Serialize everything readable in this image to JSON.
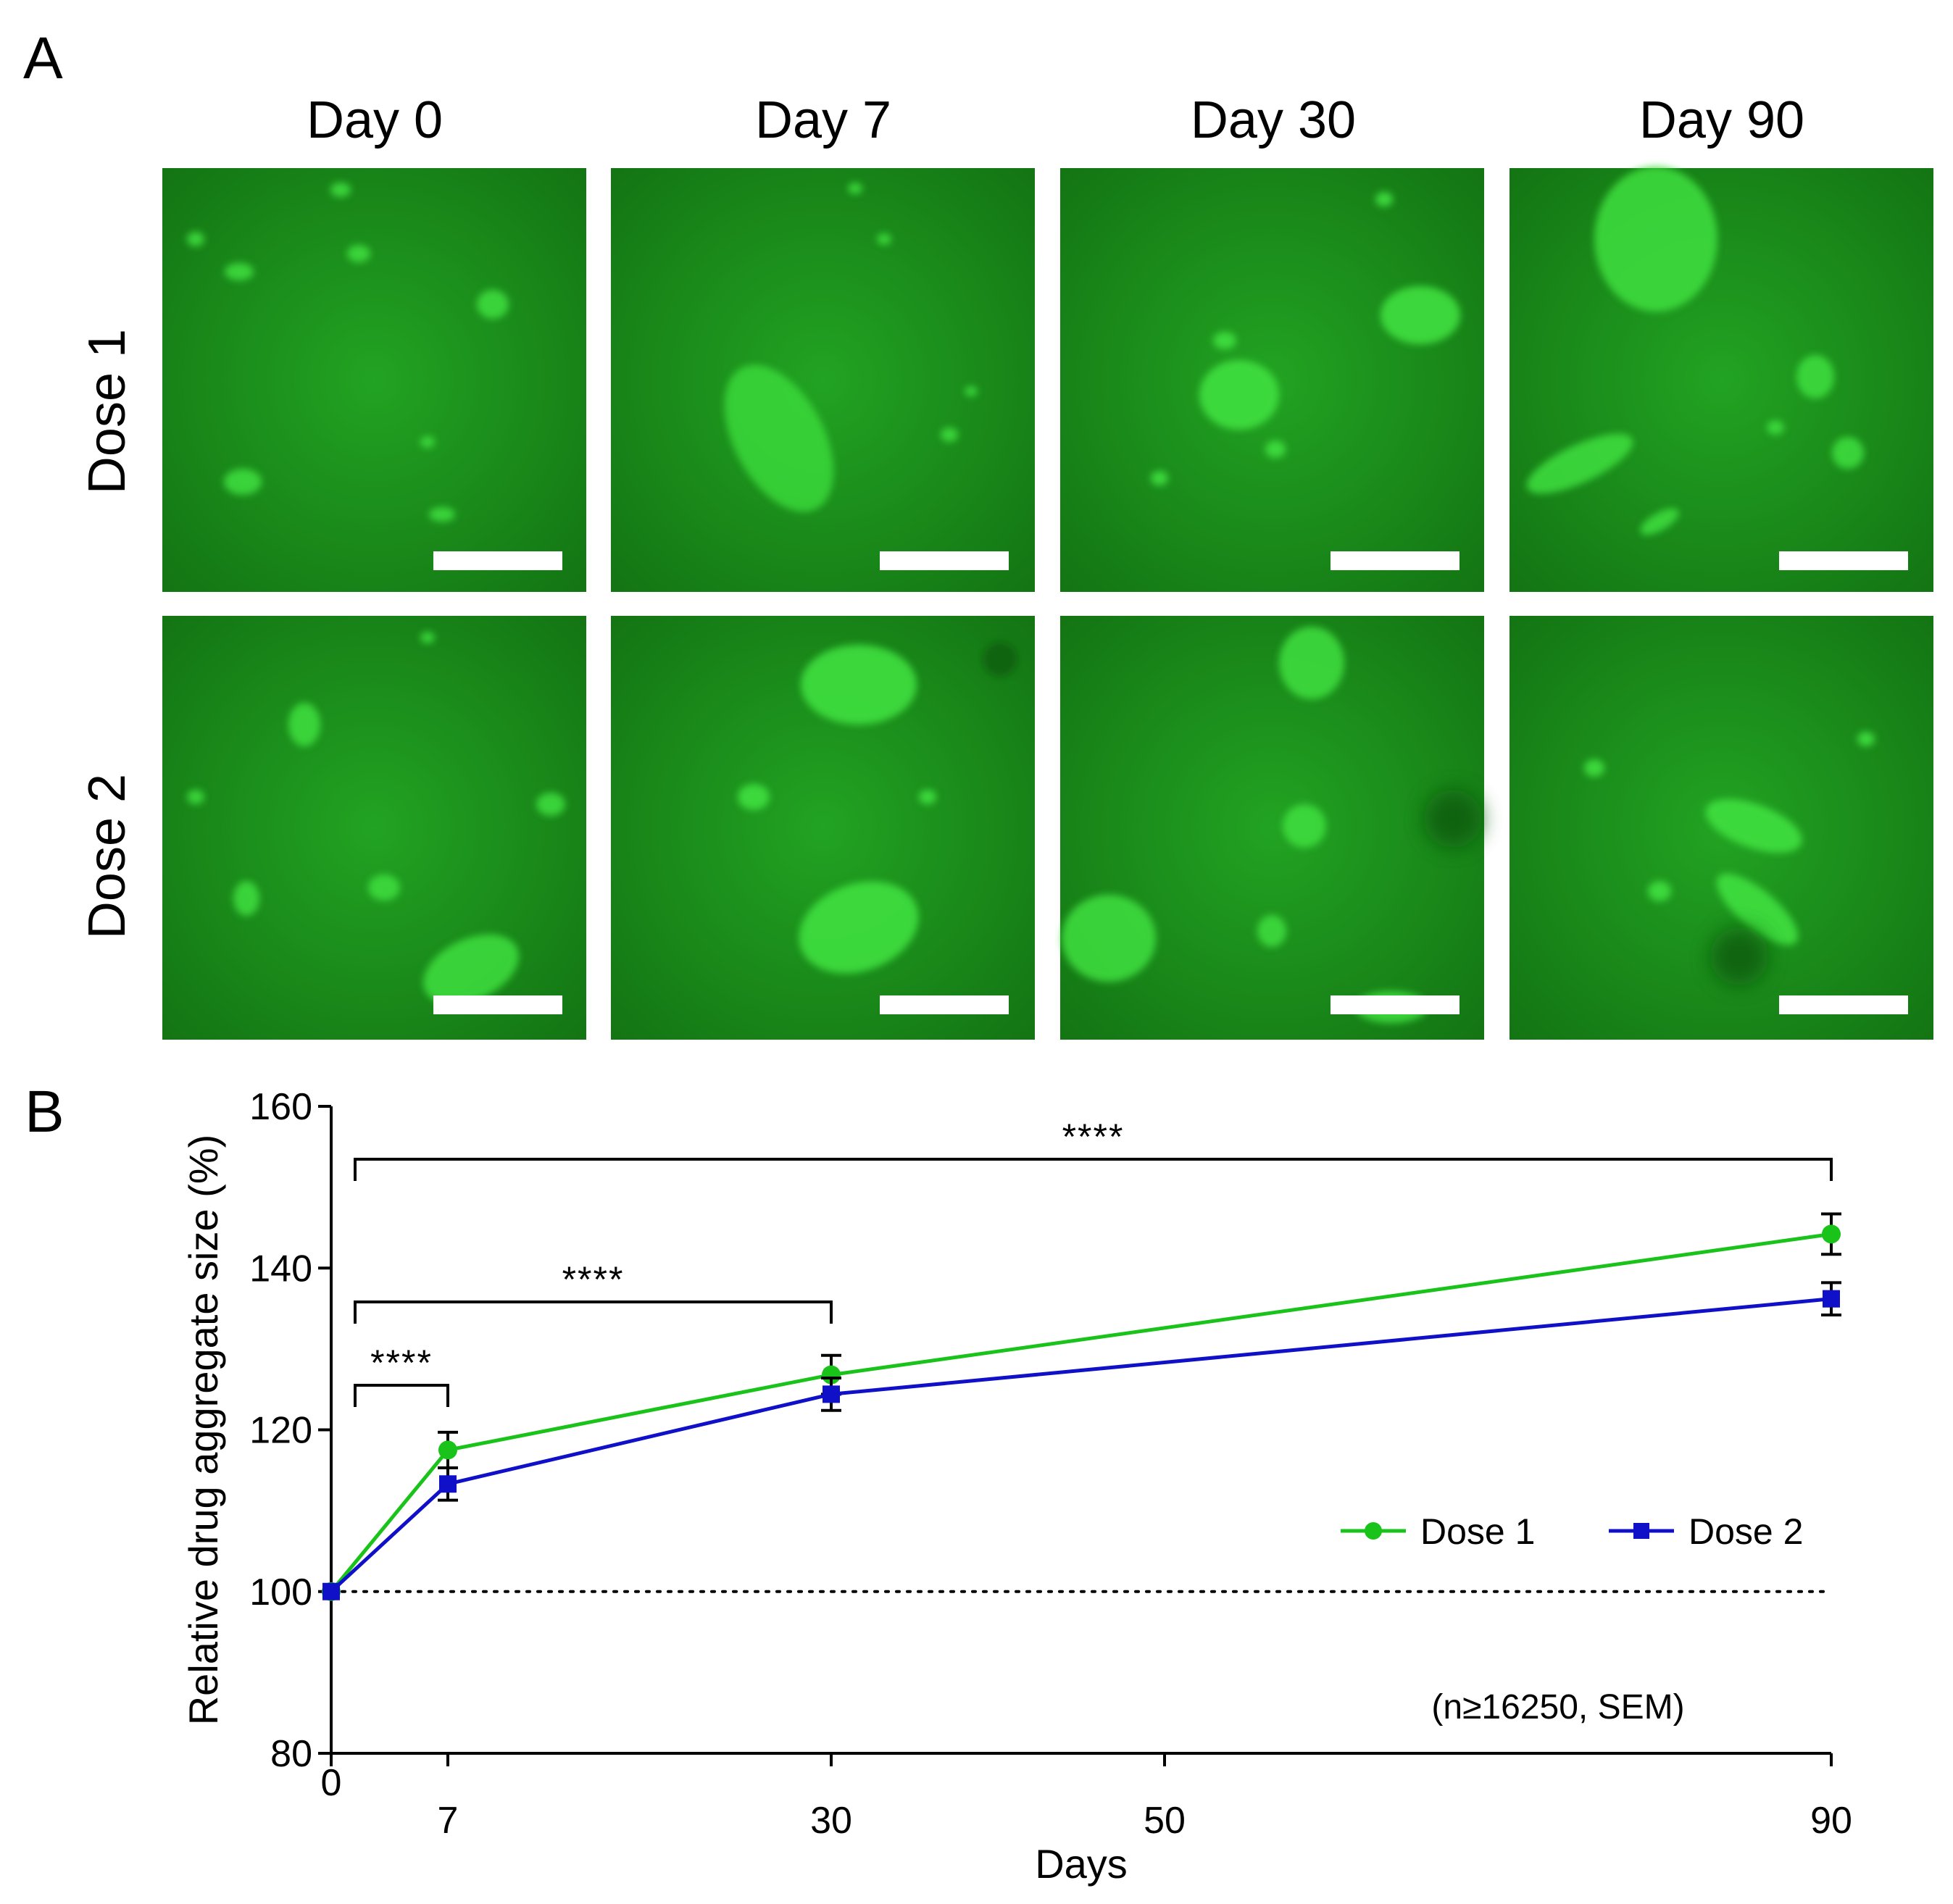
{
  "panelA": {
    "label": "A",
    "columns": [
      "Day 0",
      "Day 7",
      "Day 30",
      "Day 90"
    ],
    "rows": [
      "Dose 1",
      "Dose 2"
    ],
    "image_color": "#1a8c1a",
    "spot_color": "#3fe03f",
    "scale_bar_color": "#ffffff"
  },
  "panelB": {
    "label": "B",
    "note": "(n≥16250, SEM)",
    "significance": [
      "****",
      "****",
      "****"
    ]
  },
  "chart_data": {
    "type": "line",
    "x": [
      0,
      7,
      30,
      90
    ],
    "xlabel": "Days",
    "ylabel": "Relative drug aggregate size  (%)",
    "xlim": [
      0,
      90
    ],
    "ylim": [
      80,
      160
    ],
    "xticks": [
      0,
      7,
      30,
      50,
      90
    ],
    "yticks": [
      80,
      100,
      120,
      140,
      160
    ],
    "reference_line": 100,
    "legend_position": "right",
    "series": [
      {
        "name": "Dose 1",
        "color": "#19c319",
        "marker": "circle",
        "values": [
          100,
          117.5,
          126.8,
          144.2
        ],
        "error": [
          0,
          2.2,
          2.4,
          2.5
        ]
      },
      {
        "name": "Dose 2",
        "color": "#1010c8",
        "marker": "square",
        "values": [
          100,
          113.3,
          124.4,
          136.2
        ],
        "error": [
          0,
          2.0,
          2.0,
          2.0
        ]
      }
    ],
    "comparisons": [
      {
        "from": 0,
        "to": 7,
        "label": "****"
      },
      {
        "from": 0,
        "to": 30,
        "label": "****"
      },
      {
        "from": 0,
        "to": 90,
        "label": "****"
      }
    ]
  }
}
